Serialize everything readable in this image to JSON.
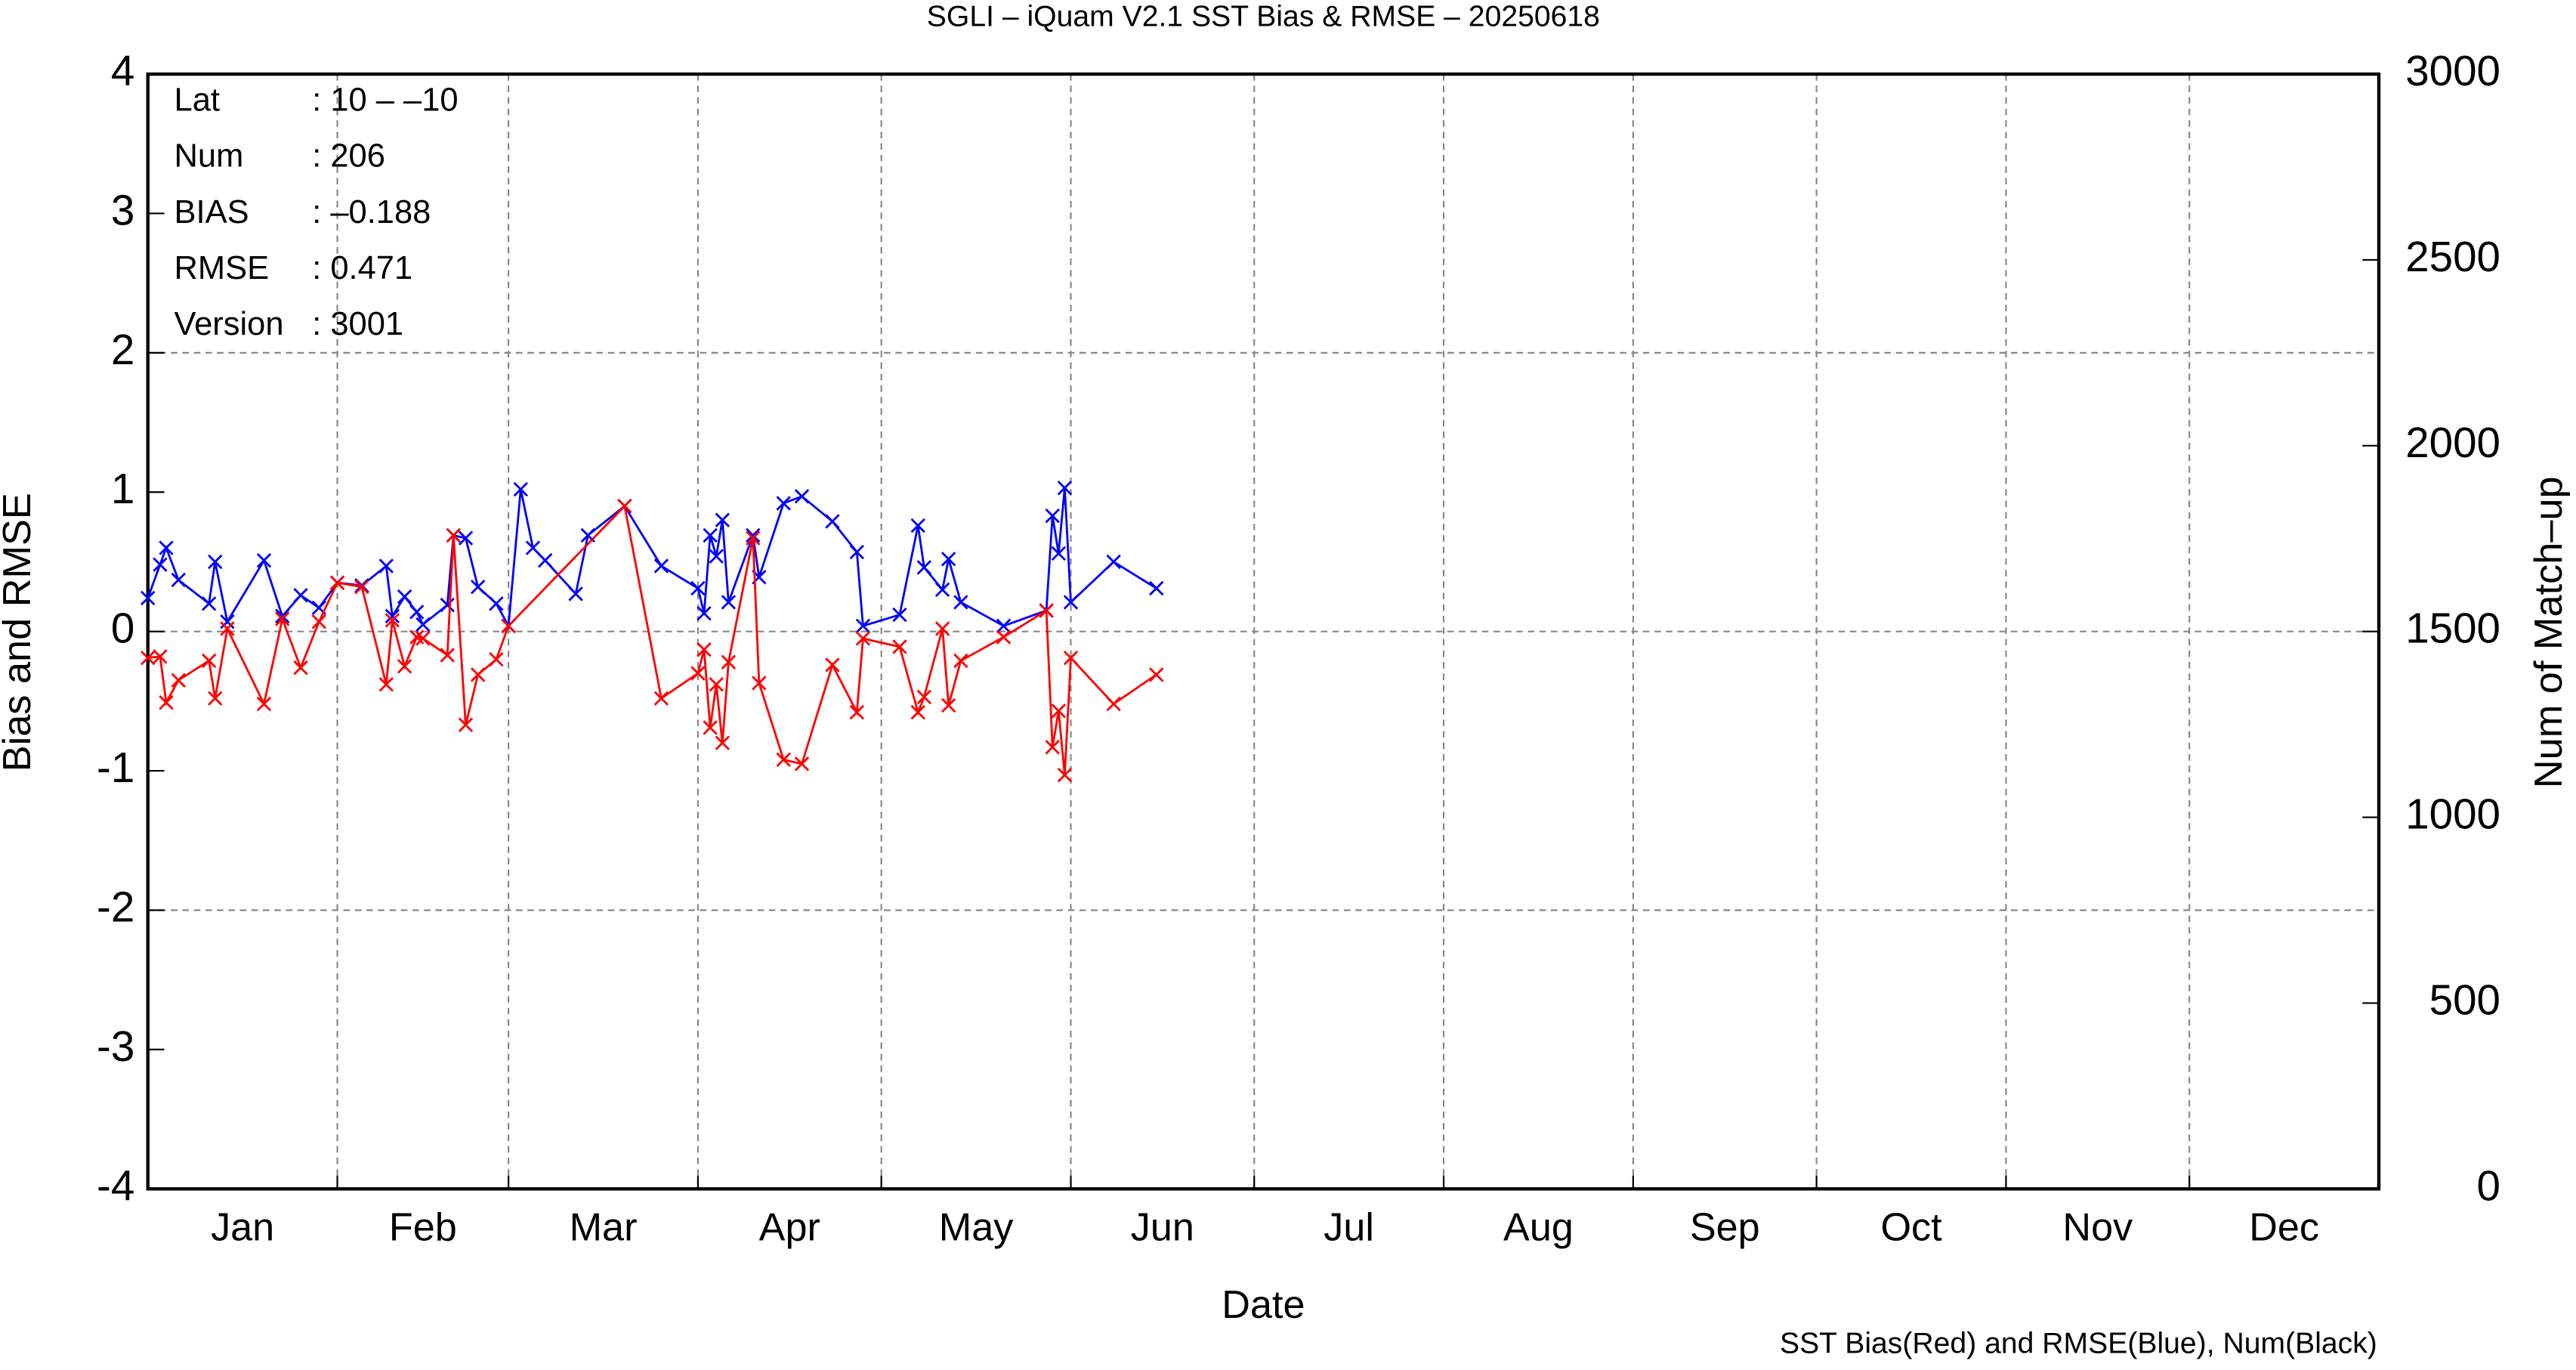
{
  "chart_data": {
    "type": "line",
    "title": "SGLI – iQuam V2.1 SST Bias & RMSE  – 20250618",
    "x_label": "Date",
    "y_label": "Bias and RMSE",
    "y2_label": "Num of Match–up",
    "footer": "SST Bias(Red) and RMSE(Blue), Num(Black)",
    "info": [
      {
        "key": "Lat",
        "value": ": 10 – –10"
      },
      {
        "key": "Num",
        "value": ": 206"
      },
      {
        "key": "BIAS",
        "value": ": –0.188"
      },
      {
        "key": "RMSE",
        "value": ": 0.471"
      },
      {
        "key": "Version",
        "value": ": 3001"
      }
    ],
    "xlim": [
      0,
      365
    ],
    "xticks": [
      {
        "value": 0,
        "label": "Jan"
      },
      {
        "value": 31,
        "label": "Feb"
      },
      {
        "value": 59,
        "label": "Mar"
      },
      {
        "value": 90,
        "label": "Apr"
      },
      {
        "value": 120,
        "label": "May"
      },
      {
        "value": 151,
        "label": "Jun"
      },
      {
        "value": 181,
        "label": "Jul"
      },
      {
        "value": 212,
        "label": "Aug"
      },
      {
        "value": 243,
        "label": "Sep"
      },
      {
        "value": 273,
        "label": "Oct"
      },
      {
        "value": 304,
        "label": "Nov"
      },
      {
        "value": 334,
        "label": "Dec"
      }
    ],
    "ylim": [
      -4,
      4
    ],
    "yticks": [
      -4,
      -3,
      -2,
      -1,
      0,
      1,
      2,
      3,
      4
    ],
    "ygrid": [
      -2,
      0,
      2
    ],
    "y2lim": [
      0,
      3000
    ],
    "y2ticks": [
      0,
      500,
      1000,
      1500,
      2000,
      2500,
      3000
    ],
    "grid": true,
    "series": [
      {
        "name": "RMSE",
        "color": "#0000ff",
        "x": [
          0,
          2,
          3,
          5,
          10,
          11,
          13,
          19,
          22,
          25,
          28,
          31,
          35,
          39,
          40,
          42,
          44,
          45,
          49,
          50,
          52,
          54,
          57,
          59,
          61,
          63,
          65,
          70,
          72,
          78,
          84,
          90,
          91,
          92,
          93,
          94,
          95,
          99,
          100,
          104,
          107,
          112,
          116,
          117,
          123,
          126,
          127,
          130,
          131,
          133,
          140,
          147,
          148,
          149,
          150,
          151,
          158,
          165
        ],
        "values": [
          0.24,
          0.48,
          0.6,
          0.37,
          0.2,
          0.5,
          0.07,
          0.51,
          0.11,
          0.26,
          0.17,
          0.35,
          0.33,
          0.47,
          0.11,
          0.25,
          0.14,
          0.05,
          0.19,
          0.69,
          0.67,
          0.32,
          0.2,
          0.04,
          1.02,
          0.6,
          0.51,
          0.27,
          0.69,
          0.9,
          0.47,
          0.31,
          0.13,
          0.69,
          0.54,
          0.8,
          0.21,
          0.69,
          0.39,
          0.92,
          0.97,
          0.79,
          0.57,
          0.04,
          0.12,
          0.76,
          0.46,
          0.3,
          0.52,
          0.21,
          0.04,
          0.15,
          0.83,
          0.56,
          1.03,
          0.21,
          0.5,
          0.31
        ]
      },
      {
        "name": "Bias",
        "color": "#ff0000",
        "x": [
          0,
          2,
          3,
          5,
          10,
          11,
          13,
          19,
          22,
          25,
          28,
          31,
          35,
          39,
          40,
          42,
          44,
          45,
          49,
          50,
          52,
          54,
          57,
          59,
          78,
          84,
          90,
          91,
          92,
          93,
          94,
          95,
          99,
          100,
          104,
          107,
          112,
          116,
          117,
          123,
          126,
          127,
          130,
          131,
          133,
          140,
          147,
          148,
          149,
          150,
          151,
          158,
          165
        ],
        "values": [
          -0.19,
          -0.18,
          -0.51,
          -0.35,
          -0.21,
          -0.48,
          0.02,
          -0.52,
          0.09,
          -0.26,
          0.07,
          0.35,
          0.32,
          -0.38,
          0.08,
          -0.25,
          -0.04,
          -0.05,
          -0.17,
          0.69,
          -0.67,
          -0.31,
          -0.2,
          0.04,
          0.9,
          -0.48,
          -0.3,
          -0.13,
          -0.69,
          -0.38,
          -0.8,
          -0.22,
          0.67,
          -0.37,
          -0.92,
          -0.95,
          -0.24,
          -0.58,
          -0.05,
          -0.11,
          -0.58,
          -0.47,
          0.02,
          -0.53,
          -0.21,
          -0.04,
          0.15,
          -0.83,
          -0.57,
          -1.03,
          -0.19,
          -0.52,
          -0.31
        ]
      }
    ]
  }
}
